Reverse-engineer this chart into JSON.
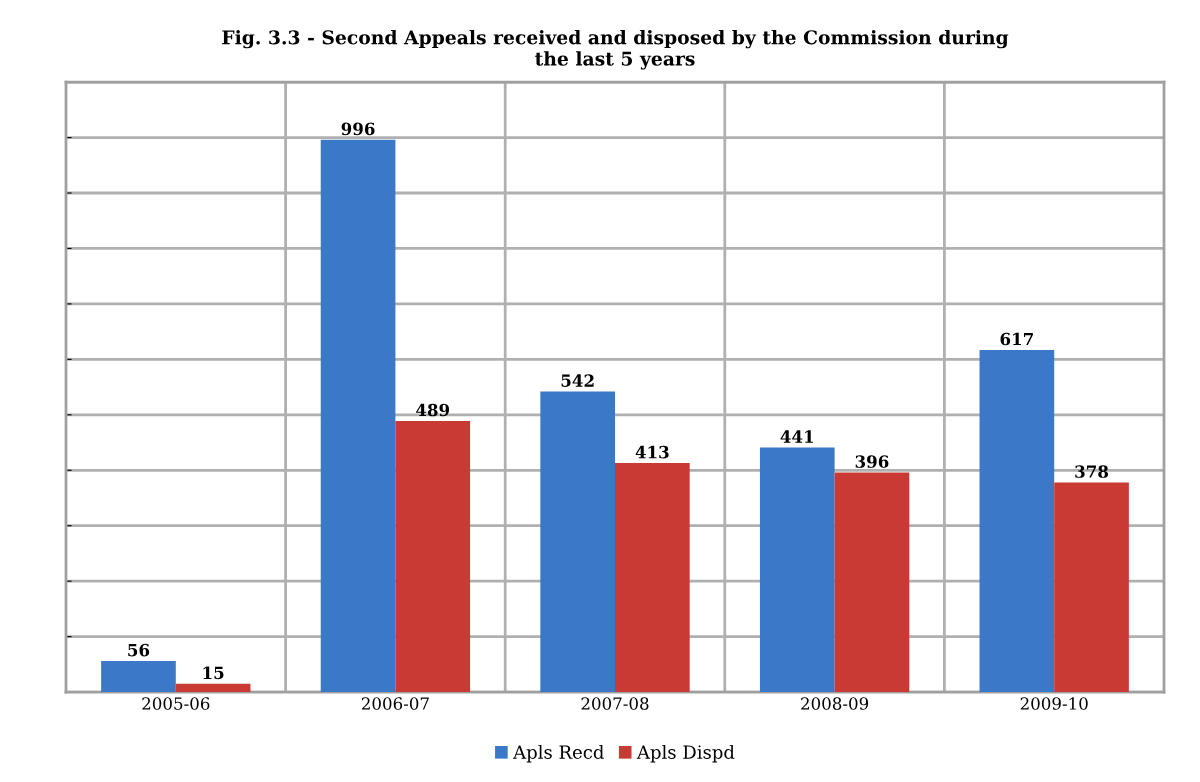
{
  "chart_data": {
    "type": "bar",
    "title": "Fig. 3.3 - Second Appeals received and disposed by the Commission during\nthe last 5 years",
    "categories": [
      "2005-06",
      "2006-07",
      "2007-08",
      "2008-09",
      "2009-10"
    ],
    "series": [
      {
        "name": "Apls Recd",
        "color": "#3b78c8",
        "values": [
          56,
          996,
          542,
          441,
          617
        ]
      },
      {
        "name": "Apls Dispd",
        "color": "#c93a35",
        "values": [
          15,
          489,
          413,
          396,
          378
        ]
      }
    ],
    "ylim": [
      0,
      1100
    ],
    "yticks": [
      {
        "value": 0,
        "label": null
      },
      {
        "value": 100,
        "label": null
      },
      {
        "value": 200,
        "label": null
      },
      {
        "value": 300,
        "label": null
      },
      {
        "value": 400,
        "label": null
      },
      {
        "value": 500,
        "label": null
      },
      {
        "value": 600,
        "label": null
      },
      {
        "value": 700,
        "label": null
      },
      {
        "value": 800,
        "label": null
      },
      {
        "value": 900,
        "label": null
      },
      {
        "value": 1000,
        "label": null
      },
      {
        "value": 1100,
        "label": null
      }
    ],
    "tick_labels": "x",
    "data_labels": true,
    "grid": true,
    "legend": "bottom"
  }
}
